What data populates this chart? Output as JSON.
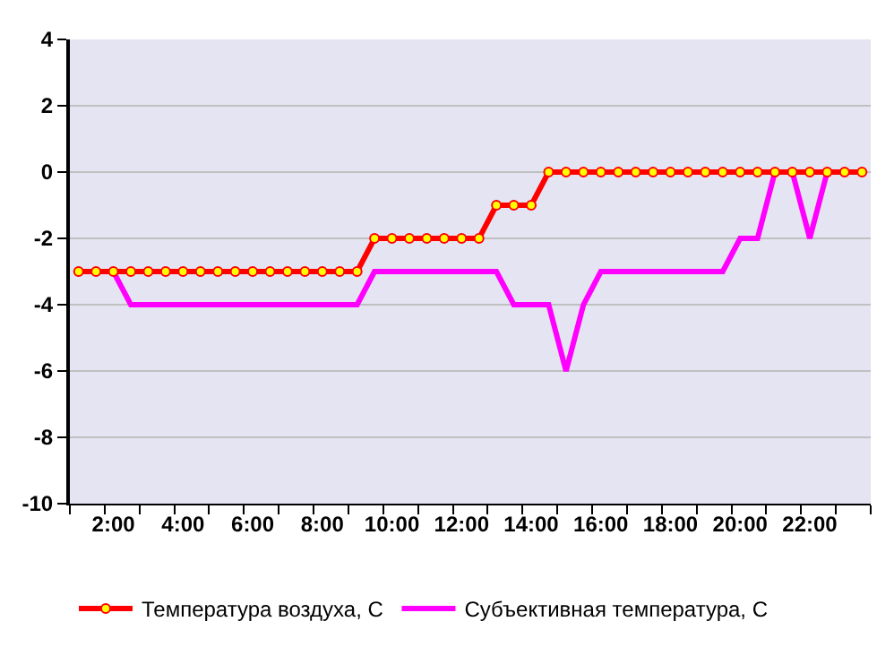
{
  "chart_data": {
    "type": "line",
    "categories": [
      null,
      null,
      "2:00",
      null,
      null,
      null,
      "4:00",
      null,
      null,
      null,
      "6:00",
      null,
      null,
      null,
      "8:00",
      null,
      null,
      null,
      "10:00",
      null,
      null,
      null,
      "12:00",
      null,
      null,
      null,
      "14:00",
      null,
      null,
      null,
      "16:00",
      null,
      null,
      null,
      "18:00",
      null,
      null,
      null,
      "20:00",
      null,
      null,
      null,
      "22:00",
      null,
      null,
      null
    ],
    "series": [
      {
        "name": "Температура воздуха, С",
        "color": "#ff0000",
        "marker": "circle",
        "values": [
          -3,
          -3,
          -3,
          -3,
          -3,
          -3,
          -3,
          -3,
          -3,
          -3,
          -3,
          -3,
          -3,
          -3,
          -3,
          -3,
          -3,
          -2,
          -2,
          -2,
          -2,
          -2,
          -2,
          -2,
          -1,
          -1,
          -1,
          0,
          0,
          0,
          0,
          0,
          0,
          0,
          0,
          0,
          0,
          0,
          0,
          0,
          0,
          0,
          0,
          0,
          0,
          0
        ]
      },
      {
        "name": "Субъективная температура, С",
        "color": "#ff00ff",
        "marker": "none",
        "values": [
          -3,
          -3,
          -3,
          -4,
          -4,
          -4,
          -4,
          -4,
          -4,
          -4,
          -4,
          -4,
          -4,
          -4,
          -4,
          -4,
          -4,
          -3,
          -3,
          -3,
          -3,
          -3,
          -3,
          -3,
          -3,
          -4,
          -4,
          -4,
          -6,
          -4,
          -3,
          -3,
          -3,
          -3,
          -3,
          -3,
          -3,
          -3,
          -2,
          -2,
          0,
          0,
          -2,
          0,
          0,
          0
        ]
      }
    ],
    "ylim": [
      -10,
      4
    ],
    "yticks": [
      -10,
      -8,
      -6,
      -4,
      -2,
      0,
      2,
      4
    ],
    "grid": "y",
    "legend": "bottom"
  }
}
